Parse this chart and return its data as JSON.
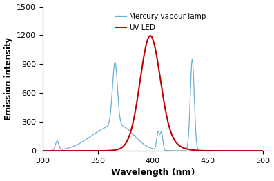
{
  "xlabel": "Wavelength (nm)",
  "ylabel": "Emission intensity",
  "xlim": [
    300,
    500
  ],
  "ylim": [
    0,
    1500
  ],
  "yticks": [
    0,
    300,
    600,
    900,
    1200,
    1500
  ],
  "xticks": [
    300,
    350,
    400,
    450,
    500
  ],
  "mercury_color": "#6aafd6",
  "uvled_color": "#c00000",
  "legend_mercury": "Mercury vapour lamp",
  "legend_uvled": "UV-LED"
}
